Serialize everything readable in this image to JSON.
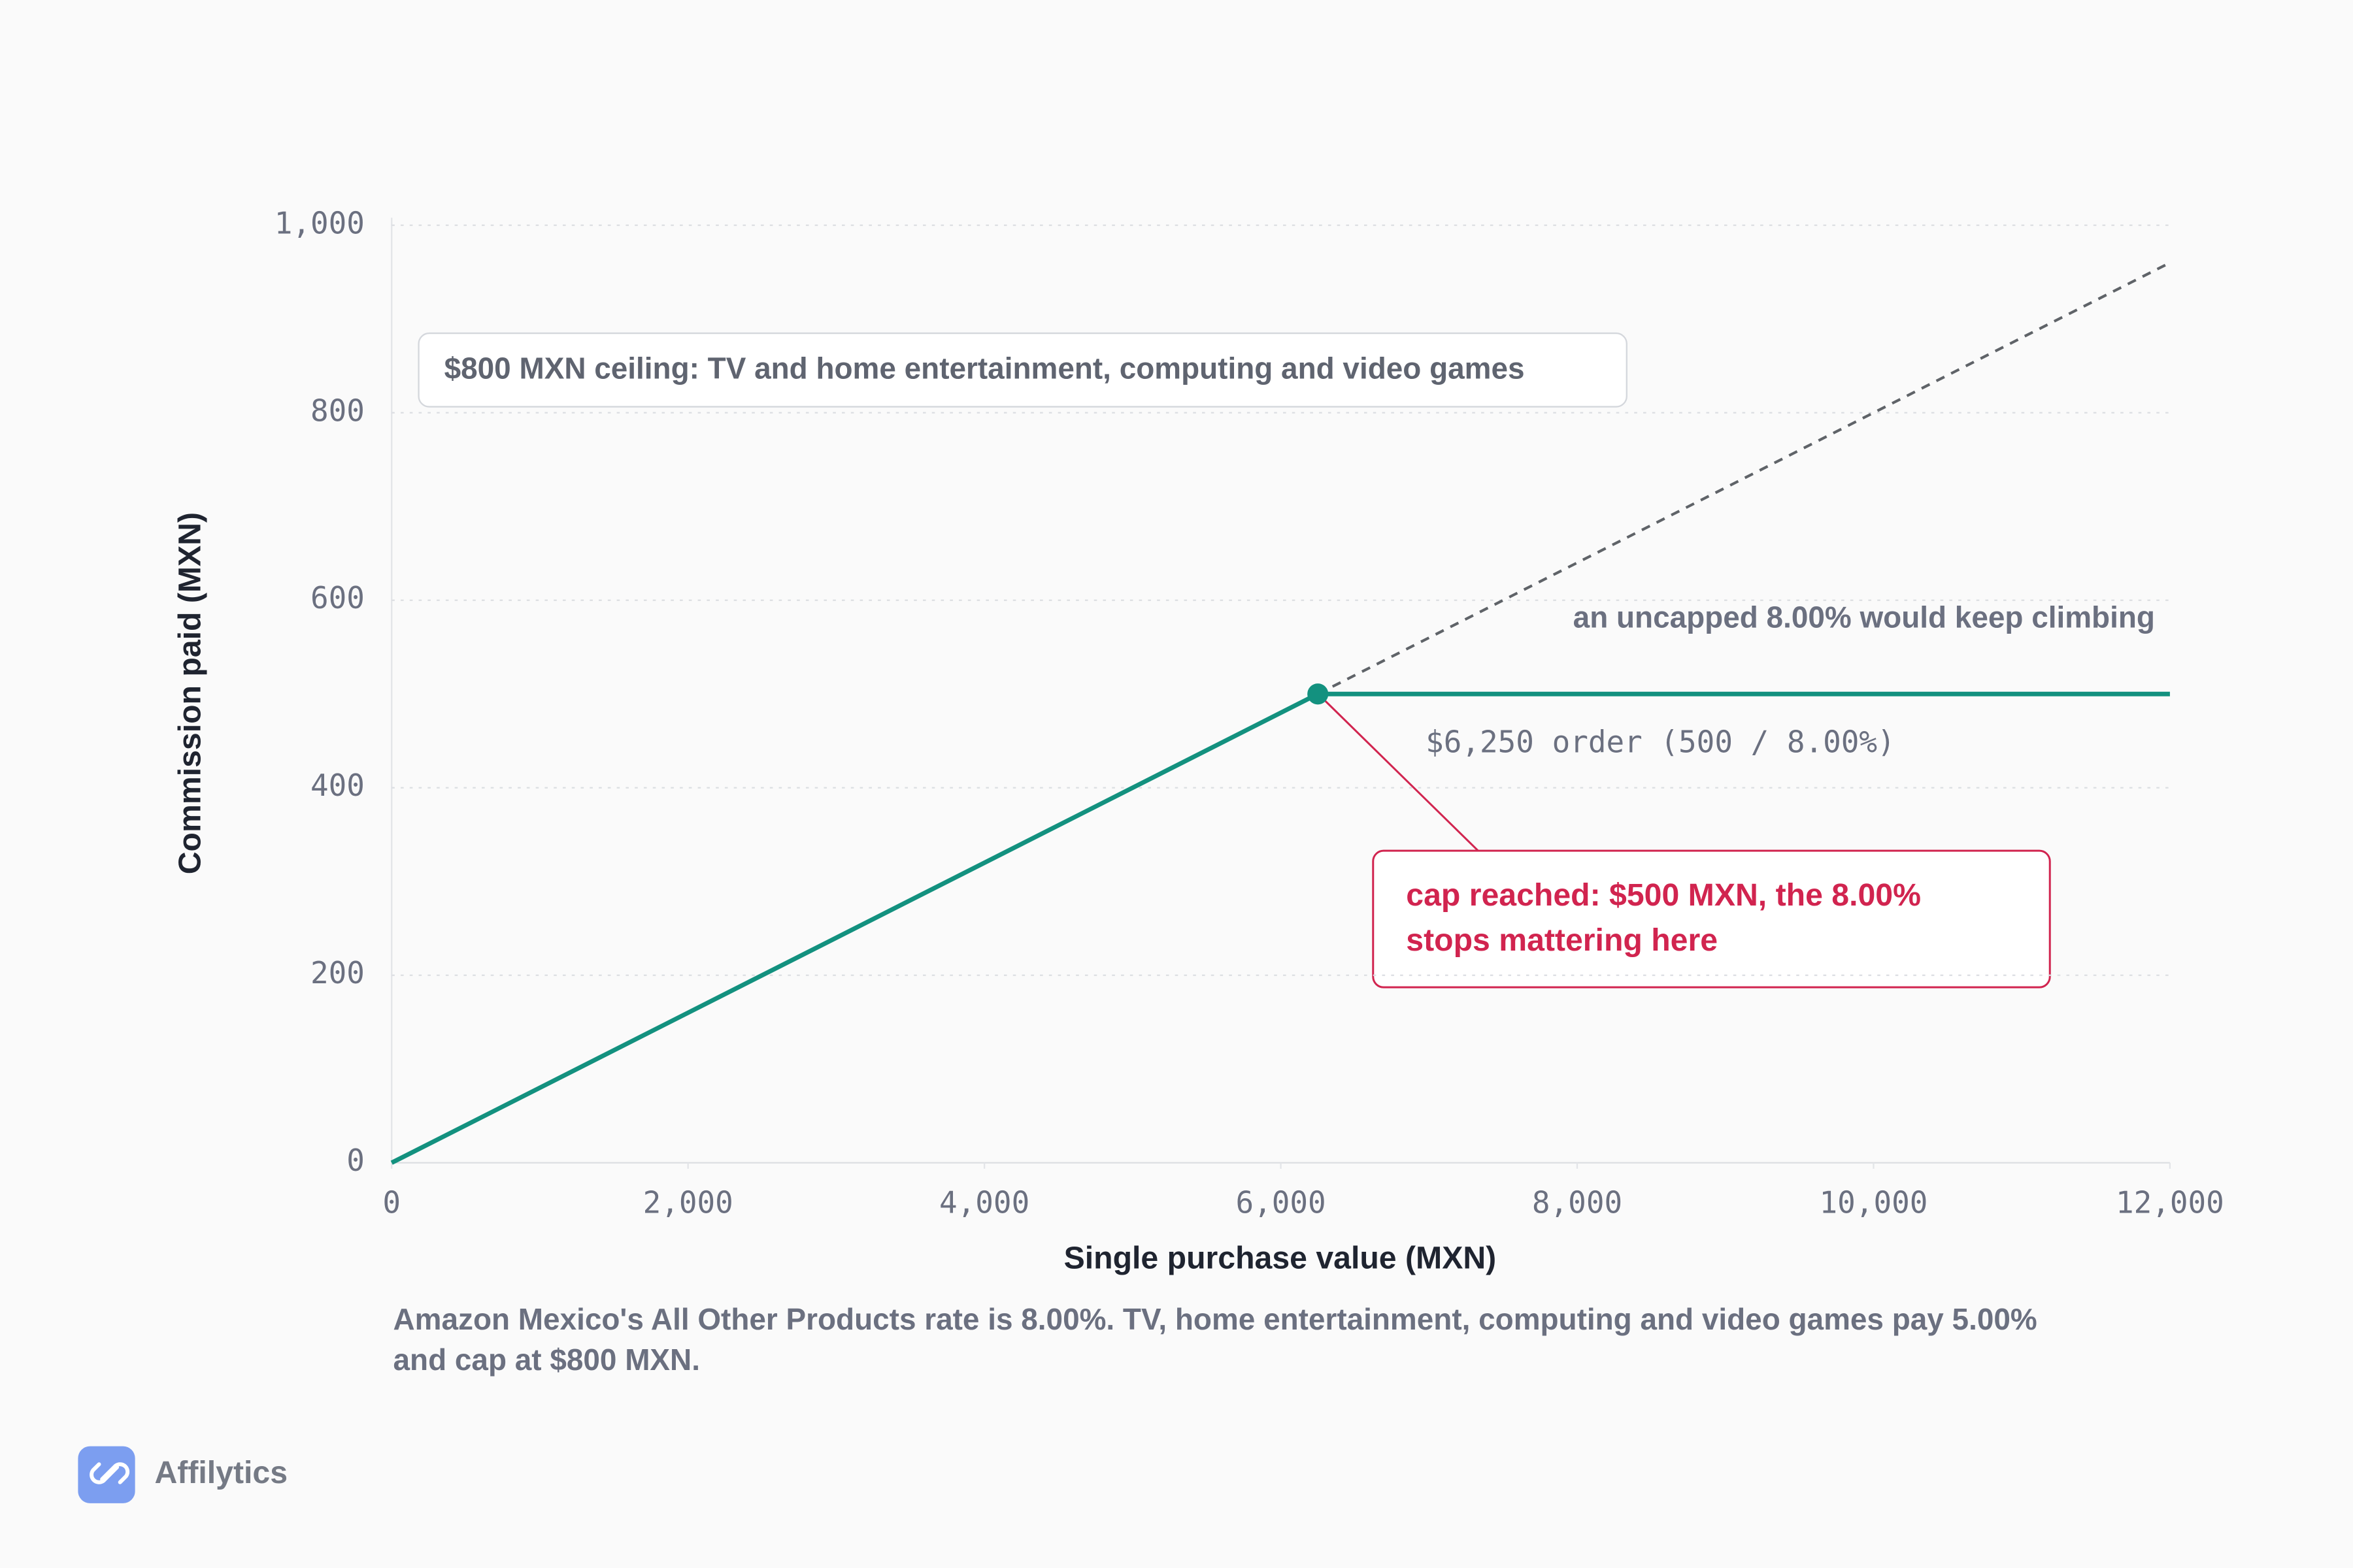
{
  "chart_data": {
    "type": "line",
    "x_label": "Single purchase value (MXN)",
    "y_label": "Commission paid (MXN)",
    "xlim": [
      0,
      12000
    ],
    "ylim": [
      0,
      1000
    ],
    "xticks": [
      0,
      {
        "value": 2000,
        "label": "2,000"
      },
      {
        "value": 4000,
        "label": "4,000"
      },
      {
        "value": 6000,
        "label": "6,000"
      },
      {
        "value": 8000,
        "label": "8,000"
      },
      {
        "value": 10000,
        "label": "10,000"
      },
      {
        "value": 12000,
        "label": "12,000"
      }
    ],
    "yticks": [
      0,
      200,
      400,
      600,
      800,
      {
        "value": 1000,
        "label": "1,000"
      }
    ],
    "grid": true,
    "series": [
      {
        "color": "#13917f",
        "style": "solid",
        "x": [
          0,
          6250,
          12000
        ],
        "values": [
          0,
          500,
          500
        ]
      },
      {
        "color": "#5f6368",
        "style": "dashed",
        "x": [
          6250,
          12000
        ],
        "values": [
          500,
          960
        ]
      }
    ],
    "marker": {
      "x": 6250,
      "y": 500,
      "color": "#13917f"
    },
    "ceiling_note": "$800 MXN ceiling: TV and home entertainment, computing and video games",
    "uncapped_note": "an uncapped 8.00% would keep climbing",
    "order_note": "$6,250 order (500 / 8.00%)",
    "cap_callout": [
      "cap reached: $500 MXN, the 8.00%",
      "stops mattering here"
    ]
  },
  "caption": [
    "Amazon Mexico's All Other Products rate is 8.00%. TV, home entertainment, computing and video games pay 5.00%",
    "and cap at $800 MXN."
  ],
  "brand": "Affilytics"
}
